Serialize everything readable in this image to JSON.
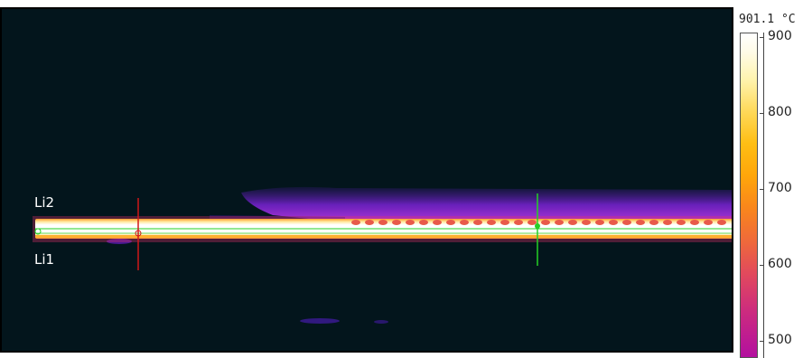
{
  "thermal_view": {
    "line_labels": {
      "li1": "Li1",
      "li2": "Li2"
    }
  },
  "temperature_scale": {
    "max_label": "901.1 °C",
    "ticks": [
      "900",
      "800",
      "700",
      "600",
      "500"
    ]
  },
  "colors": {
    "background": "#03151c",
    "hot": "#ffffff",
    "cool_plume": "#7a1fd6",
    "cursor_red": "#d01818",
    "cursor_green": "#25d025"
  }
}
